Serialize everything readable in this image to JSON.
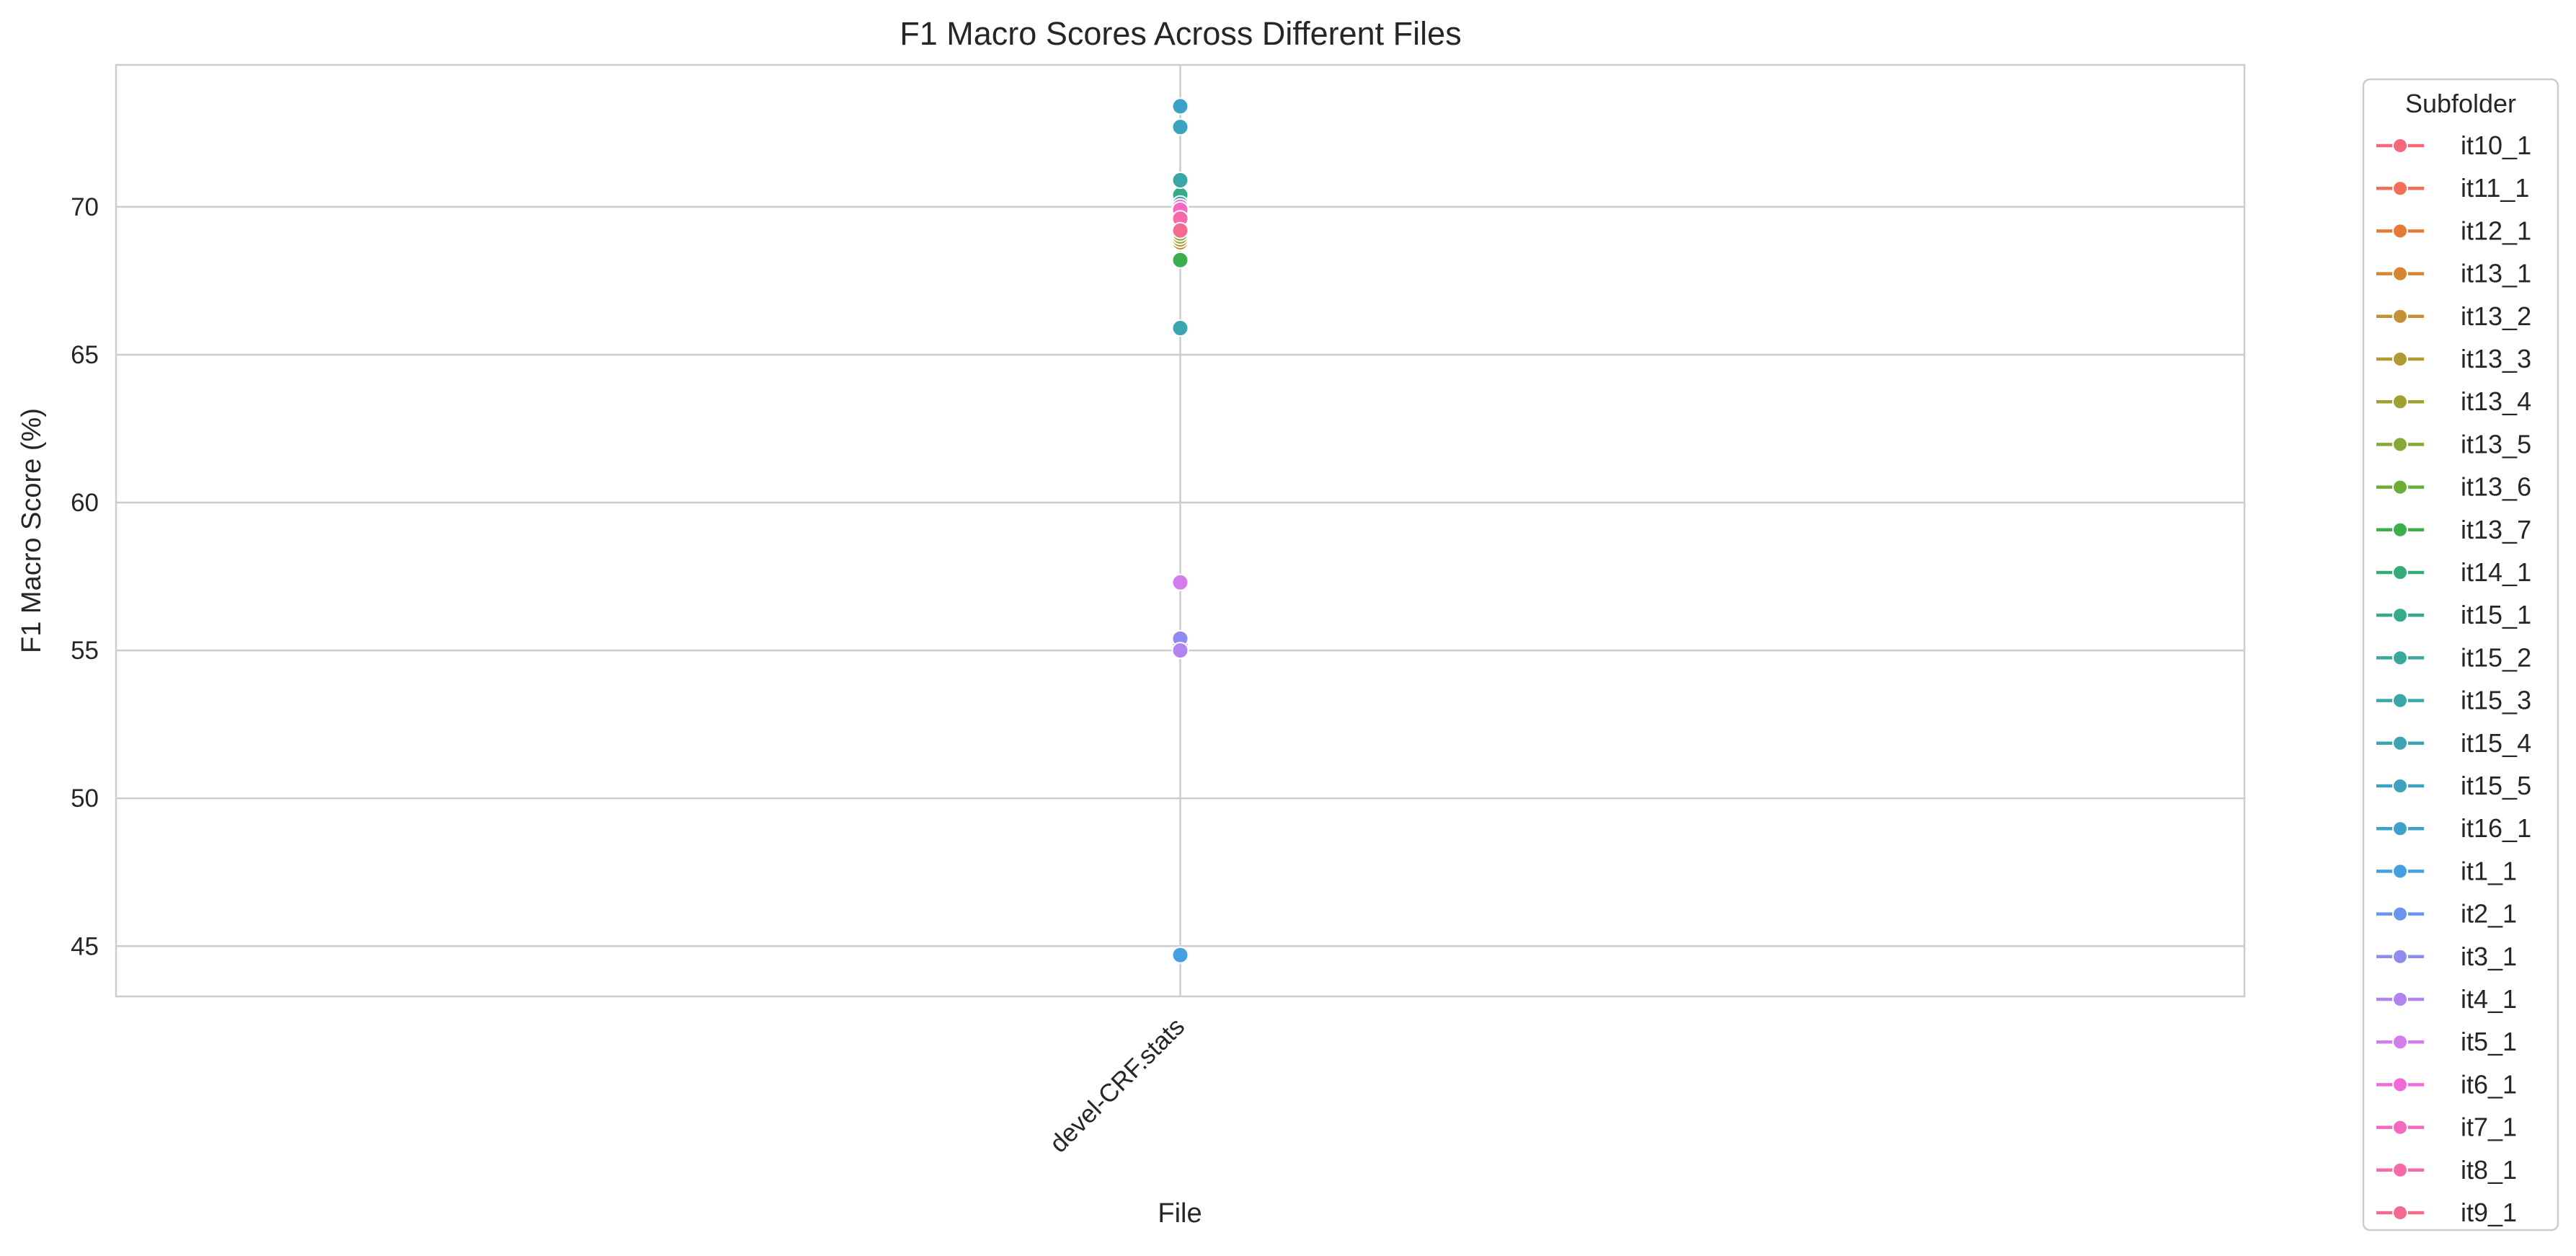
{
  "chart_data": {
    "type": "scatter",
    "title": "F1 Macro Scores Across Different Files",
    "xlabel": "File",
    "ylabel": "F1 Macro Score (%)",
    "categories": [
      "devel-CRF.stats"
    ],
    "ylim": [
      43.3,
      74.8
    ],
    "yticks": [
      45,
      50,
      55,
      60,
      65,
      70
    ],
    "grid": true,
    "legend": {
      "title": "Subfolder",
      "placement": "outside-right"
    },
    "series": [
      {
        "name": "it10_1",
        "color": "#f7697a",
        "values": [
          69.2
        ]
      },
      {
        "name": "it11_1",
        "color": "#f46e55",
        "values": [
          69.1
        ]
      },
      {
        "name": "it12_1",
        "color": "#e57b36",
        "values": [
          69.0
        ]
      },
      {
        "name": "it13_1",
        "color": "#d58631",
        "values": [
          68.9
        ]
      },
      {
        "name": "it13_2",
        "color": "#c39033",
        "values": [
          68.8
        ]
      },
      {
        "name": "it13_3",
        "color": "#b19a32",
        "values": [
          68.9
        ]
      },
      {
        "name": "it13_4",
        "color": "#9fa232",
        "values": [
          69.0
        ]
      },
      {
        "name": "it13_5",
        "color": "#87a933",
        "values": [
          69.1
        ]
      },
      {
        "name": "it13_6",
        "color": "#6aae37",
        "values": [
          69.3
        ]
      },
      {
        "name": "it13_7",
        "color": "#3aaf4c",
        "values": [
          68.2
        ]
      },
      {
        "name": "it14_1",
        "color": "#35ac78",
        "values": [
          69.6
        ]
      },
      {
        "name": "it15_1",
        "color": "#36aa8c",
        "values": [
          70.4
        ]
      },
      {
        "name": "it15_2",
        "color": "#38a99a",
        "values": [
          70.1
        ]
      },
      {
        "name": "it15_3",
        "color": "#39a7a6",
        "values": [
          70.9
        ]
      },
      {
        "name": "it15_4",
        "color": "#3aa5b1",
        "values": [
          65.9
        ]
      },
      {
        "name": "it15_5",
        "color": "#3ba3bd",
        "values": [
          72.7
        ]
      },
      {
        "name": "it16_1",
        "color": "#3da1ca",
        "values": [
          73.4
        ]
      },
      {
        "name": "it1_1",
        "color": "#44a0e0",
        "values": [
          44.7
        ]
      },
      {
        "name": "it2_1",
        "color": "#6b94ef",
        "values": [
          55.2
        ]
      },
      {
        "name": "it3_1",
        "color": "#8f8bef",
        "values": [
          55.4
        ]
      },
      {
        "name": "it4_1",
        "color": "#b284ef",
        "values": [
          55.0
        ]
      },
      {
        "name": "it5_1",
        "color": "#d57ced",
        "values": [
          57.3
        ]
      },
      {
        "name": "it6_1",
        "color": "#f06ada",
        "values": [
          70.0
        ]
      },
      {
        "name": "it7_1",
        "color": "#f468c0",
        "values": [
          69.9
        ]
      },
      {
        "name": "it8_1",
        "color": "#f66aa7",
        "values": [
          69.6
        ]
      },
      {
        "name": "it9_1",
        "color": "#f76a8f",
        "values": [
          69.2
        ]
      }
    ]
  }
}
